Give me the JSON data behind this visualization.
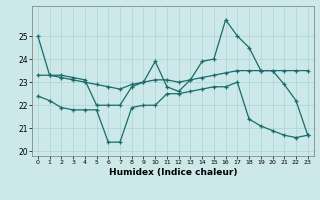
{
  "xlabel": "Humidex (Indice chaleur)",
  "background_color": "#cce8e8",
  "line_color": "#1a6b6b",
  "grid_color": "#aad4d4",
  "xlim": [
    -0.5,
    23.5
  ],
  "ylim": [
    19.8,
    26.3
  ],
  "yticks": [
    20,
    21,
    22,
    23,
    24,
    25
  ],
  "xticks": [
    0,
    1,
    2,
    3,
    4,
    5,
    6,
    7,
    8,
    9,
    10,
    11,
    12,
    13,
    14,
    15,
    16,
    17,
    18,
    19,
    20,
    21,
    22,
    23
  ],
  "series1_x": [
    0,
    1,
    2,
    3,
    4,
    5,
    6,
    7,
    8,
    9,
    10,
    11,
    12,
    13,
    14,
    15,
    16,
    17,
    18,
    19,
    20,
    21,
    22,
    23
  ],
  "series1_y": [
    25.0,
    23.3,
    23.3,
    23.2,
    23.1,
    22.0,
    22.0,
    22.0,
    22.8,
    23.0,
    23.9,
    22.8,
    22.6,
    23.1,
    23.9,
    24.0,
    25.7,
    25.0,
    24.5,
    23.5,
    23.5,
    22.9,
    22.2,
    20.7
  ],
  "series2_x": [
    0,
    1,
    2,
    3,
    4,
    5,
    6,
    7,
    8,
    9,
    10,
    11,
    12,
    13,
    14,
    15,
    16,
    17,
    18,
    19,
    20,
    21,
    22,
    23
  ],
  "series2_y": [
    23.3,
    23.3,
    23.2,
    23.1,
    23.0,
    22.9,
    22.8,
    22.7,
    22.9,
    23.0,
    23.1,
    23.1,
    23.0,
    23.1,
    23.2,
    23.3,
    23.4,
    23.5,
    23.5,
    23.5,
    23.5,
    23.5,
    23.5,
    23.5
  ],
  "series3_x": [
    0,
    1,
    2,
    3,
    4,
    5,
    6,
    7,
    8,
    9,
    10,
    11,
    12,
    13,
    14,
    15,
    16,
    17,
    18,
    19,
    20,
    21,
    22,
    23
  ],
  "series3_y": [
    22.4,
    22.2,
    21.9,
    21.8,
    21.8,
    21.8,
    20.4,
    20.4,
    21.9,
    22.0,
    22.0,
    22.5,
    22.5,
    22.6,
    22.7,
    22.8,
    22.8,
    23.0,
    21.4,
    21.1,
    20.9,
    20.7,
    20.6,
    20.7
  ]
}
